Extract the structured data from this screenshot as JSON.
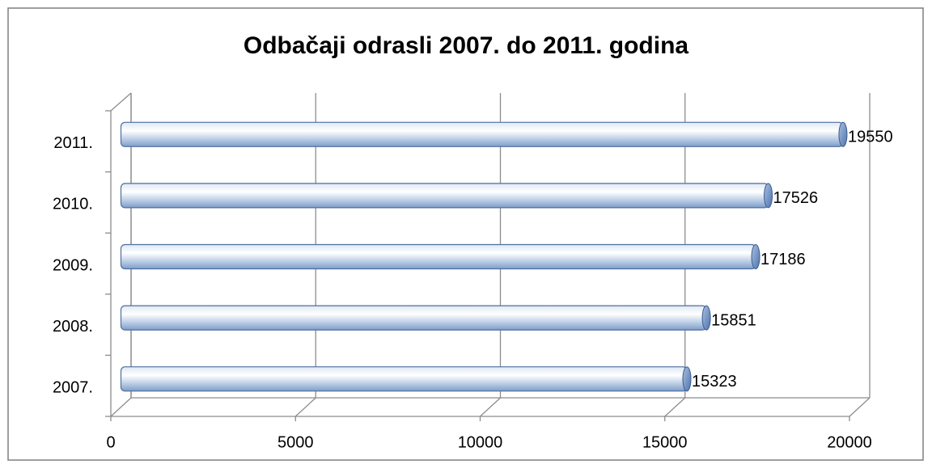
{
  "chart_data": {
    "type": "bar",
    "orientation": "horizontal",
    "title": "Odbačaji odrasli 2007. do 2011. godina",
    "categories": [
      "2007.",
      "2008.",
      "2009.",
      "2010.",
      "2011."
    ],
    "values": [
      15323,
      15851,
      17186,
      17526,
      19550
    ],
    "color": "#b8cce4",
    "xlim": [
      0,
      20000
    ],
    "xticks": [
      0,
      5000,
      10000,
      15000,
      20000
    ],
    "grid": true
  }
}
